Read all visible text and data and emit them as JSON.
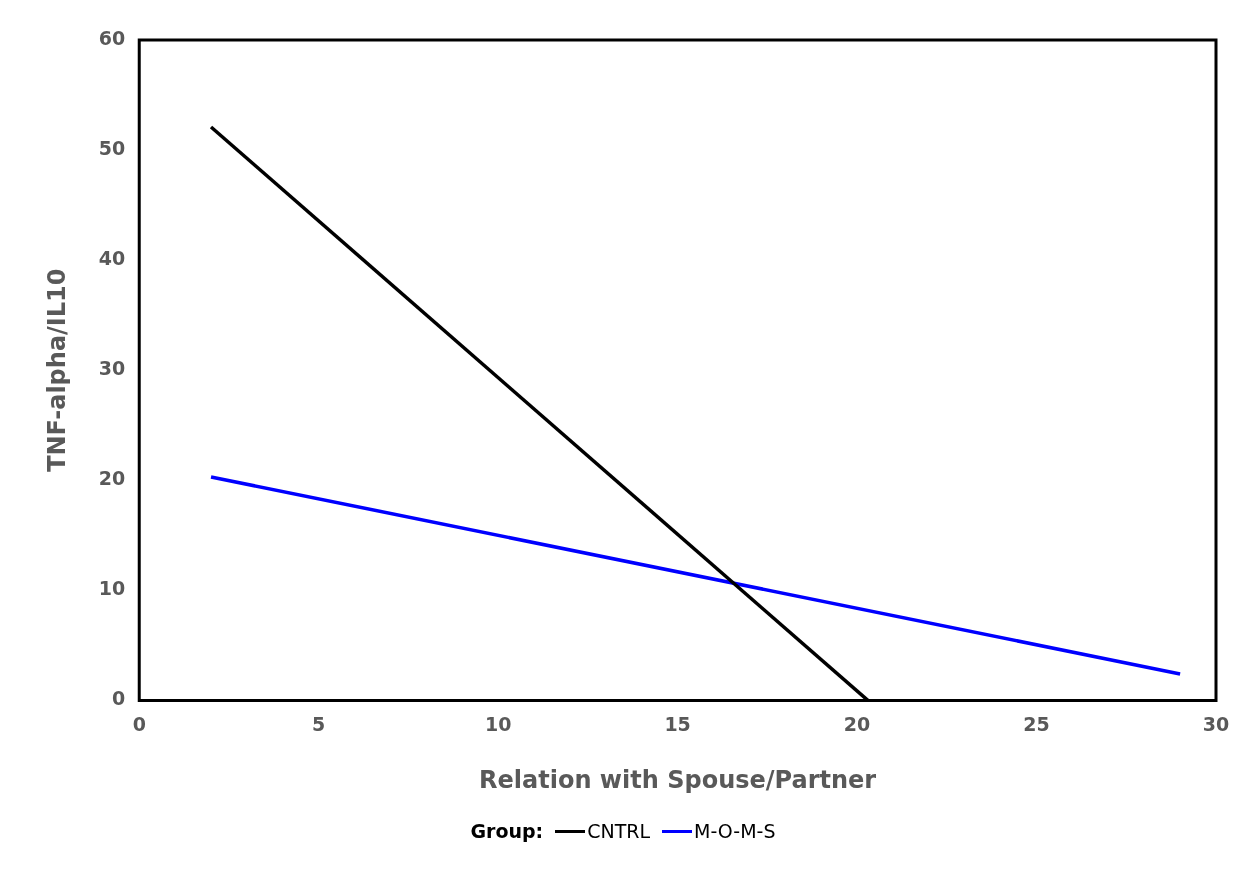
{
  "chart_data": {
    "type": "line",
    "xlabel": "Relation with Spouse/Partner",
    "ylabel": "TNF-alpha/IL10",
    "legend_title": "Group:",
    "series": [
      {
        "name": "CNTRL",
        "color": "#000000",
        "x": [
          2,
          20.3
        ],
        "values": [
          52.1,
          0
        ]
      },
      {
        "name": "M-O-M-S",
        "color": "#0000ff",
        "x": [
          2,
          29
        ],
        "values": [
          20.3,
          2.4
        ]
      }
    ],
    "xlim": [
      0,
      30
    ],
    "xticks": [
      0,
      5,
      10,
      15,
      20,
      25,
      30
    ],
    "ylim": [
      0,
      60
    ],
    "yticks": [
      0,
      10,
      20,
      30,
      40,
      50,
      60
    ],
    "grid": false,
    "legend": "bottom",
    "marker": "none",
    "line_style": "solid"
  }
}
